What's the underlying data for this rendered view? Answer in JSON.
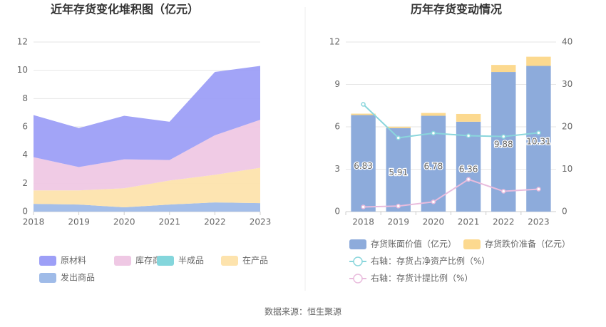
{
  "chart_data": [
    {
      "type": "area",
      "title": "近年存货变化堆积图（亿元）",
      "categories": [
        "2018",
        "2019",
        "2020",
        "2021",
        "2022",
        "2023"
      ],
      "series": [
        {
          "name": "发出商品",
          "color": "#9fbbe8",
          "values": [
            0.55,
            0.5,
            0.3,
            0.5,
            0.65,
            0.6
          ]
        },
        {
          "name": "在产品",
          "color": "#fde3ad",
          "values": [
            0.95,
            1.0,
            1.35,
            1.7,
            1.95,
            2.5
          ]
        },
        {
          "name": "半成品",
          "color": "#84d6dc",
          "values": [
            0,
            0,
            0,
            0,
            0,
            0
          ]
        },
        {
          "name": "库存商品",
          "color": "#efc8e4",
          "values": [
            2.35,
            1.65,
            2.05,
            1.45,
            2.8,
            3.4
          ]
        },
        {
          "name": "原材料",
          "color": "#9d9ff7",
          "values": [
            2.98,
            2.76,
            3.08,
            2.71,
            4.48,
            3.81
          ]
        }
      ],
      "legend_order": [
        4,
        3,
        2,
        1,
        0
      ],
      "ylim": [
        0,
        12
      ],
      "yticks": [
        0,
        2,
        4,
        6,
        8,
        10,
        12
      ],
      "grid": true
    },
    {
      "type": "bar",
      "title": "历年存货变动情况",
      "categories": [
        "2018",
        "2019",
        "2020",
        "2021",
        "2022",
        "2023"
      ],
      "series": [
        {
          "name": "存货账面价值（亿元）",
          "color": "#8dabdb",
          "values": [
            6.83,
            5.91,
            6.78,
            6.36,
            9.88,
            10.31
          ],
          "show_labels": true
        },
        {
          "name": "存货跌价准备（亿元）",
          "color": "#fcd98f",
          "values": [
            0.1,
            0.1,
            0.2,
            0.55,
            0.5,
            0.65
          ]
        },
        {
          "name": "右轴：存货占净资产比例（%）",
          "color": "#8ad6dc",
          "type": "line",
          "axis": "y2",
          "values": [
            25.3,
            17.4,
            18.5,
            17.9,
            17.7,
            18.6
          ]
        },
        {
          "name": "右轴：存货计提比例（%）",
          "color": "#e9bcdd",
          "type": "line",
          "axis": "y2",
          "values": [
            1.1,
            1.3,
            2.3,
            7.6,
            4.8,
            5.3
          ]
        }
      ],
      "ylim": [
        0,
        12
      ],
      "yticks": [
        0,
        3,
        6,
        9,
        12
      ],
      "y2lim": [
        0,
        40
      ],
      "y2ticks": [
        0,
        10,
        20,
        30,
        40
      ],
      "grid": true
    }
  ],
  "source": "数据来源：恒生聚源"
}
